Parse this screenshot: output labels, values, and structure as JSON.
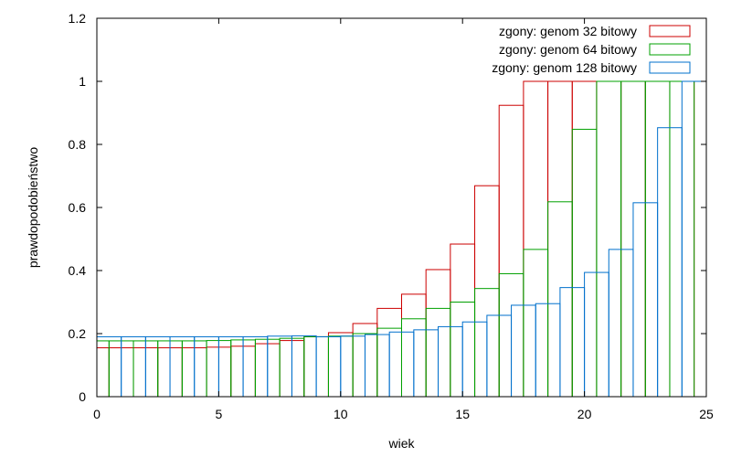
{
  "chart_data": {
    "type": "bar",
    "title": "",
    "xlabel": "wiek",
    "ylabel": "prawdopodobieństwo",
    "xlim": [
      0,
      25
    ],
    "ylim": [
      0,
      1.2
    ],
    "x_ticks": [
      0,
      5,
      10,
      15,
      20,
      25
    ],
    "y_ticks": [
      0,
      0.2,
      0.4,
      0.6,
      0.8,
      1,
      1.2
    ],
    "x_tick_labels": [
      "0",
      "5",
      "10",
      "15",
      "20",
      "25"
    ],
    "y_tick_labels": [
      "0",
      "0.2",
      "0.4",
      "0.6",
      "0.8",
      "1",
      "1.2"
    ],
    "grid": false,
    "legend_position": "top-right",
    "series": [
      {
        "name": "zgony: genom 32 bitowy",
        "color": "#cc0000",
        "x": [
          0,
          1,
          2,
          3,
          4,
          5,
          6,
          7,
          8,
          9,
          10,
          11,
          12,
          13,
          14,
          15,
          16,
          17,
          18,
          19,
          20,
          21,
          22,
          23,
          24
        ],
        "values": [
          0.155,
          0.155,
          0.155,
          0.155,
          0.155,
          0.157,
          0.16,
          0.168,
          0.178,
          0.19,
          0.203,
          0.232,
          0.28,
          0.325,
          0.403,
          0.484,
          0.669,
          0.924,
          1.0,
          1.0,
          1.0,
          1.0,
          1.0,
          1.0,
          1.0
        ]
      },
      {
        "name": "zgony: genom 64 bitowy",
        "color": "#00a000",
        "x": [
          0,
          1,
          2,
          3,
          4,
          5,
          6,
          7,
          8,
          9,
          10,
          11,
          12,
          13,
          14,
          15,
          16,
          17,
          18,
          19,
          20,
          21,
          22,
          23,
          24
        ],
        "values": [
          0.177,
          0.177,
          0.177,
          0.177,
          0.177,
          0.178,
          0.18,
          0.182,
          0.185,
          0.19,
          0.192,
          0.2,
          0.217,
          0.247,
          0.28,
          0.3,
          0.343,
          0.39,
          0.467,
          0.618,
          0.848,
          1.0,
          1.0,
          1.0,
          1.0
        ]
      },
      {
        "name": "zgony: genom 128 bitowy",
        "color": "#0070cc",
        "x": [
          0,
          1,
          2,
          3,
          4,
          5,
          6,
          7,
          8,
          9,
          10,
          11,
          12,
          13,
          14,
          15,
          16,
          17,
          18,
          19,
          20,
          21,
          22,
          23,
          24
        ],
        "values": [
          0.19,
          0.19,
          0.19,
          0.19,
          0.19,
          0.19,
          0.19,
          0.192,
          0.193,
          0.19,
          0.192,
          0.197,
          0.205,
          0.212,
          0.222,
          0.237,
          0.258,
          0.29,
          0.295,
          0.346,
          0.394,
          0.467,
          0.615,
          0.853,
          1.0
        ]
      }
    ]
  }
}
